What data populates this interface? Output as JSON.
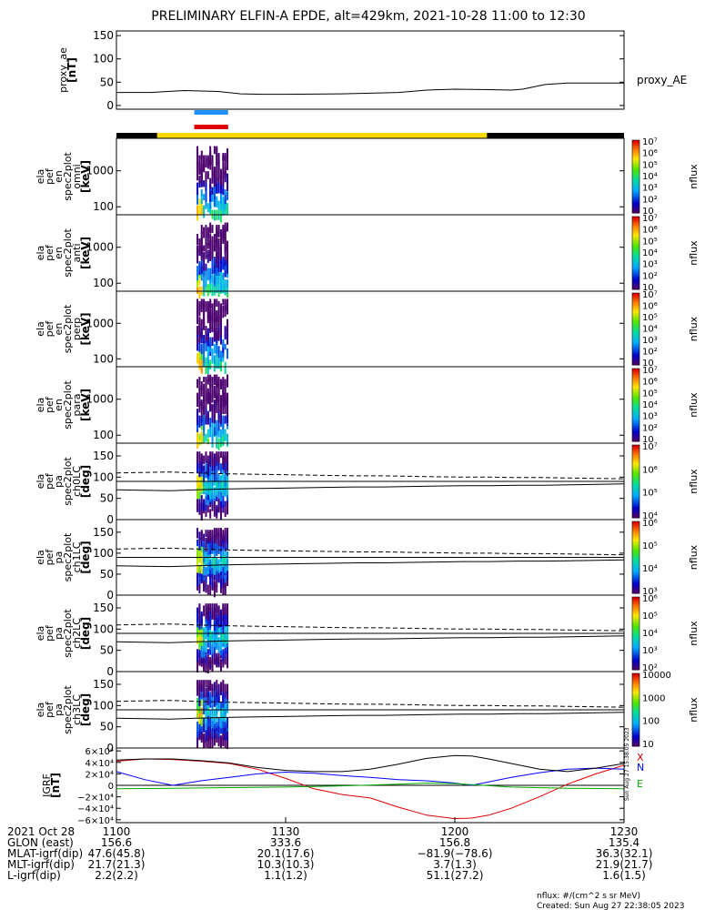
{
  "title": "PRELIMINARY ELFIN-A EPDE, alt=429km, 2021-10-28 11:00 to 12:30",
  "colors": {
    "mode_bar_black": "#000000",
    "mode_bar_yellow": "#f5d800",
    "bar_blue": "#1e90ff",
    "bar_red": "#e00000",
    "bx": "#e00000",
    "by": "#0000ff",
    "bz": "#00aa00",
    "btotal": "#000000"
  },
  "chart_data": [
    {
      "type": "line",
      "id": "proxy_ae",
      "ylabel": [
        "proxy_ae",
        "[nT]"
      ],
      "ylim": [
        -8,
        160
      ],
      "yticks": [
        0,
        50,
        100,
        150
      ],
      "ytick_labels": [
        "0",
        "50",
        "100",
        "150"
      ],
      "xlim": [
        0,
        90
      ],
      "series": [
        {
          "name": "proxy_AE",
          "x": [
            0,
            6,
            12,
            18,
            22,
            26,
            30,
            40,
            50,
            55,
            60,
            66,
            70,
            72,
            76,
            80,
            84,
            90
          ],
          "y": [
            28,
            28,
            32,
            30,
            25,
            24,
            24,
            25,
            28,
            33,
            35,
            34,
            33,
            35,
            45,
            48,
            48,
            48
          ]
        }
      ]
    },
    {
      "type": "heatmap",
      "id": "en_omni",
      "ylabel": [
        "ela",
        "pef",
        "en",
        "spec2plot",
        "omni",
        "[keV]"
      ],
      "yscale": "log",
      "ylim": [
        60,
        8000
      ],
      "yticks": [
        100,
        1000
      ],
      "ytick_labels": [
        "100",
        "1000"
      ],
      "colorbar": {
        "label": "nflux",
        "scale": "log",
        "ticks": [
          "10",
          "10²",
          "10³",
          "10⁴",
          "10⁵",
          "10⁶",
          "10⁷"
        ]
      }
    },
    {
      "type": "heatmap",
      "id": "en_anti",
      "ylabel": [
        "ela",
        "pef",
        "en",
        "spec2plot",
        "anti",
        "[keV]"
      ],
      "yscale": "log",
      "ylim": [
        60,
        8000
      ],
      "yticks": [
        100,
        1000
      ],
      "ytick_labels": [
        "100",
        "1000"
      ],
      "colorbar": {
        "label": "nflux",
        "scale": "log",
        "ticks": [
          "10",
          "10²",
          "10³",
          "10⁴",
          "10⁵",
          "10⁶",
          "10⁷"
        ]
      }
    },
    {
      "type": "heatmap",
      "id": "en_perp",
      "ylabel": [
        "ela",
        "pef",
        "en",
        "spec2plot",
        "perp",
        "[keV]"
      ],
      "yscale": "log",
      "ylim": [
        60,
        8000
      ],
      "yticks": [
        100,
        1000
      ],
      "ytick_labels": [
        "100",
        "1000"
      ],
      "colorbar": {
        "label": "nflux",
        "scale": "log",
        "ticks": [
          "10",
          "10²",
          "10³",
          "10⁴",
          "10⁵",
          "10⁶",
          "10⁷"
        ]
      }
    },
    {
      "type": "heatmap",
      "id": "en_para",
      "ylabel": [
        "ela",
        "pef",
        "en",
        "spec2plot",
        "para",
        "[keV]"
      ],
      "yscale": "log",
      "ylim": [
        60,
        8000
      ],
      "yticks": [
        100,
        1000
      ],
      "ytick_labels": [
        "100",
        "1000"
      ],
      "colorbar": {
        "label": "nflux",
        "scale": "log",
        "ticks": [
          "10",
          "10²",
          "10³",
          "10⁴",
          "10⁵",
          "10⁶",
          "10⁷"
        ]
      }
    },
    {
      "type": "heatmap",
      "id": "pa_ch0",
      "ylabel": [
        "ela",
        "pef",
        "pa",
        "spec2plot",
        "ch0LC",
        "[deg]"
      ],
      "ylim": [
        0,
        180
      ],
      "yticks": [
        0,
        50,
        100,
        150
      ],
      "ytick_labels": [
        "0",
        "50",
        "100",
        "150"
      ],
      "colorbar": {
        "label": "nflux",
        "scale": "log",
        "ticks": [
          "10⁴",
          "10⁵",
          "10⁶",
          "10⁷"
        ]
      }
    },
    {
      "type": "heatmap",
      "id": "pa_ch1",
      "ylabel": [
        "ela",
        "pef",
        "pa",
        "spec2plot",
        "ch1LC",
        "[deg]"
      ],
      "ylim": [
        0,
        180
      ],
      "yticks": [
        0,
        50,
        100,
        150
      ],
      "ytick_labels": [
        "0",
        "50",
        "100",
        "150"
      ],
      "colorbar": {
        "label": "nflux",
        "scale": "log",
        "ticks": [
          "10³",
          "10⁴",
          "10⁵",
          "10⁶"
        ]
      }
    },
    {
      "type": "heatmap",
      "id": "pa_ch2",
      "ylabel": [
        "ela",
        "pef",
        "pa",
        "spec2plot",
        "ch2LC",
        "[deg]"
      ],
      "ylim": [
        0,
        180
      ],
      "yticks": [
        0,
        50,
        100,
        150
      ],
      "ytick_labels": [
        "0",
        "50",
        "100",
        "150"
      ],
      "colorbar": {
        "label": "nflux",
        "scale": "log",
        "ticks": [
          "10²",
          "10³",
          "10⁴",
          "10⁵",
          "10⁶"
        ]
      }
    },
    {
      "type": "heatmap",
      "id": "pa_ch3",
      "ylabel": [
        "ela",
        "pef",
        "pa",
        "spec2plot",
        "ch3LC",
        "[deg]"
      ],
      "ylim": [
        0,
        180
      ],
      "yticks": [
        0,
        50,
        100,
        150
      ],
      "ytick_labels": [
        "0",
        "50",
        "100",
        "150"
      ],
      "colorbar": {
        "label": "nflux",
        "scale": "log",
        "ticks": [
          "10",
          "100",
          "1000",
          "10000"
        ]
      }
    },
    {
      "type": "line",
      "id": "igrf",
      "ylabel": [
        "IGRF",
        "[nT]"
      ],
      "ylim": [
        -65000,
        65000
      ],
      "yticks": [
        -60000,
        -40000,
        -20000,
        0,
        20000,
        40000,
        60000
      ],
      "ytick_labels": [
        "−6×10⁴",
        "−4×10⁴",
        "−2×10⁴",
        "0",
        "2×10⁴",
        "4×10⁴",
        "6×10⁴"
      ],
      "xlim": [
        0,
        90
      ],
      "series": [
        {
          "name": "X",
          "x": [
            0,
            5,
            10,
            15,
            20,
            25,
            30,
            35,
            40,
            45,
            50,
            55,
            60,
            63,
            66,
            70,
            75,
            80,
            85,
            90
          ],
          "y": [
            42000,
            46000,
            45000,
            42000,
            38000,
            28000,
            12000,
            -6000,
            -16000,
            -22000,
            -38000,
            -52000,
            -58000,
            -57000,
            -52000,
            -40000,
            -20000,
            2000,
            20000,
            35000
          ]
        },
        {
          "name": "N",
          "x": [
            0,
            5,
            10,
            15,
            20,
            25,
            30,
            35,
            40,
            45,
            50,
            55,
            60,
            63,
            66,
            70,
            75,
            80,
            85,
            90
          ],
          "y": [
            24000,
            10000,
            0,
            8000,
            14000,
            20000,
            23000,
            21000,
            17000,
            14000,
            10000,
            8000,
            4000,
            0,
            6000,
            14000,
            22000,
            28000,
            30000,
            28000
          ]
        },
        {
          "name": "E",
          "x": [
            0,
            10,
            20,
            30,
            40,
            50,
            55,
            60,
            65,
            70,
            80,
            90
          ],
          "y": [
            -6000,
            -5000,
            -4000,
            -3000,
            -1000,
            2000,
            4000,
            3000,
            0,
            -3000,
            -5000,
            -6000
          ]
        },
        {
          "name": "",
          "x": [
            0,
            5,
            10,
            15,
            20,
            25,
            30,
            35,
            40,
            45,
            50,
            55,
            60,
            63,
            66,
            70,
            75,
            80,
            85,
            90
          ],
          "y": [
            44000,
            46000,
            46000,
            43000,
            39000,
            31000,
            26000,
            24000,
            24000,
            28000,
            37000,
            47000,
            52000,
            51000,
            46000,
            38000,
            28000,
            24000,
            30000,
            38000
          ]
        }
      ]
    }
  ],
  "timestamp_vertical": "Sun Aug 27 15:38:05 2023",
  "footer": {
    "row_labels": [
      "2021 Oct 28",
      "GLON (east)",
      "MLAT-igrf(dip)",
      "MLT-igrf(dip)",
      "L-igrf(dip)"
    ],
    "columns": [
      {
        "time": "1100",
        "values": [
          "156.6",
          "47.6(45.8)",
          "21.7(21.3)",
          "2.2(2.2)"
        ]
      },
      {
        "time": "1130",
        "values": [
          "333.6",
          "20.1(17.6)",
          "10.3(10.3)",
          "1.1(1.2)"
        ]
      },
      {
        "time": "1200",
        "values": [
          "156.8",
          "−81.9(−78.6)",
          "3.7(1.3)",
          "51.1(27.2)"
        ]
      },
      {
        "time": "1230",
        "values": [
          "135.4",
          "36.3(32.1)",
          "21.9(21.7)",
          "1.6(1.5)"
        ]
      }
    ],
    "units_note": "nflux: #/(cm^2 s sr MeV)",
    "created": "Created: Sun Aug 27 22:38:05 2023"
  }
}
